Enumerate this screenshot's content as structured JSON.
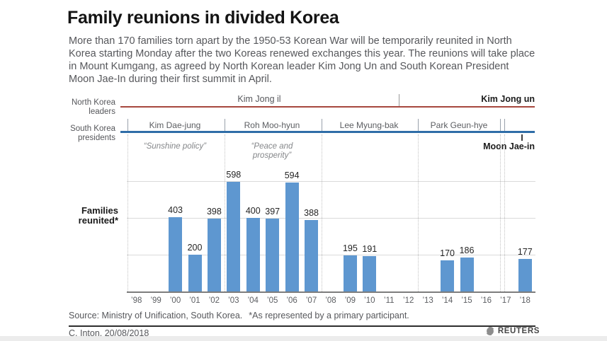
{
  "header": {
    "title": "Family reunions in divided Korea",
    "subtitle_lines": [
      "More than 170 families torn apart by the 1950-53 Korean War will be temporarily reunited in North",
      "Korea starting Monday after the two Koreas renewed exchanges this year. The reunions will take place",
      "in Mount Kumgang, as agreed by North Korean leader Kim Jong Un and South Korean President",
      "Moon Jae-In during their first summit in April."
    ]
  },
  "timeline": {
    "north": {
      "row_label_line1": "North Korea",
      "row_label_line2": "leaders",
      "leader_early": "Kim Jong il",
      "leader_current": "Kim Jong un",
      "line_color": "#a6473e"
    },
    "south": {
      "row_label_line1": "South Korea",
      "row_label_line2": "presidents",
      "presidents": [
        "Kim Dae-jung",
        "Roh Moo-hyun",
        "Lee Myung-bak",
        "Park Geun-hye"
      ],
      "president_current": "Moon Jae-in",
      "quotes": [
        "“Sunshine policy”",
        "“Peace and prosperity”"
      ],
      "line_color": "#2f6da8"
    }
  },
  "chart_data": {
    "type": "bar",
    "title": "Families reunited*",
    "x_axis_labels": [
      "’98",
      "’99",
      "’00",
      "’01",
      "’02",
      "’03",
      "’04",
      "’05",
      "’06",
      "’07",
      "’08",
      "’09",
      "’10",
      "’11",
      "’12",
      "’13",
      "’14",
      "’15",
      "’16",
      "’17",
      "’18"
    ],
    "bars": [
      {
        "year": 2000,
        "value": 403
      },
      {
        "year": 2001,
        "value": 200
      },
      {
        "year": 2002,
        "value": 398
      },
      {
        "year": 2003,
        "value": 598
      },
      {
        "year": 2004,
        "value": 400
      },
      {
        "year": 2005,
        "value": 397
      },
      {
        "year": 2006,
        "value": 594
      },
      {
        "year": 2007,
        "value": 388
      },
      {
        "year": 2009,
        "value": 195
      },
      {
        "year": 2010,
        "value": 191
      },
      {
        "year": 2014,
        "value": 170
      },
      {
        "year": 2015,
        "value": 186
      },
      {
        "year": 2018,
        "value": 177
      }
    ],
    "ylim": [
      0,
      650
    ],
    "gridline_values": [
      200,
      400,
      600
    ],
    "y_tick_labels": "none",
    "legend": "none",
    "bar_color": "#5e97d0"
  },
  "footer": {
    "source": "Source: Ministry of Unification, South Korea.",
    "footnote": "*As represented by a primary participant.",
    "credit": "C. Inton, 20/08/2018",
    "brand": "REUTERS"
  }
}
